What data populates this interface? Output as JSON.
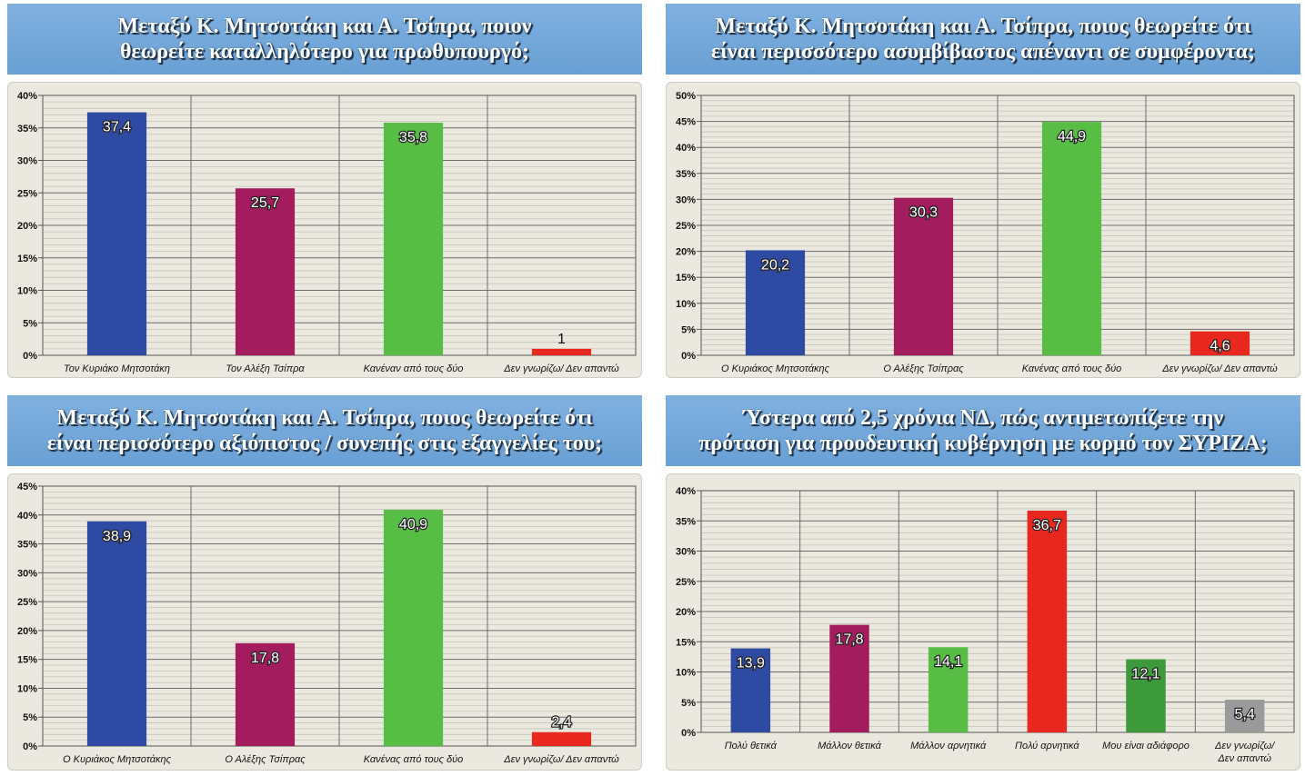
{
  "chart_data": [
    {
      "type": "bar",
      "title_lines": [
        "Μεταξύ Κ. Μητσοτάκη και Α. Τσίπρα, ποιον",
        "θεωρείτε καταλληλότερο για πρωθυπουργό;"
      ],
      "categories": [
        "Τον Κυριάκο Μητσοτάκη",
        "Τον Αλέξη Τσίπρα",
        "Κανέναν από τους δύο",
        "Δεν γνωρίζω/ Δεν απαντώ"
      ],
      "values": [
        37.4,
        25.7,
        35.8,
        1
      ],
      "value_labels": [
        "37,4",
        "25,7",
        "35,8",
        "1"
      ],
      "colors": [
        "#2f4aa3",
        "#a31c5e",
        "#57bd45",
        "#e8281f"
      ],
      "ylim": [
        0,
        40
      ],
      "yticks": [
        0,
        5,
        10,
        15,
        20,
        25,
        30,
        35,
        40
      ],
      "ytick_labels": [
        "0%",
        "5%",
        "10%",
        "15%",
        "20%",
        "25%",
        "30%",
        "35%",
        "40%"
      ],
      "grid": true
    },
    {
      "type": "bar",
      "title_lines": [
        "Μεταξύ Κ. Μητσοτάκη και Α. Τσίπρα, ποιος θεωρείτε ότι",
        "είναι περισσότερο ασυμβίβαστος απέναντι σε συμφέροντα;"
      ],
      "categories": [
        "Ο Κυριάκος Μητσοτάκης",
        "Ο Αλέξης Τσίπρας",
        "Κανένας από τους δύο",
        "Δεν γνωρίζω/ Δεν απαντώ"
      ],
      "values": [
        20.2,
        30.3,
        44.9,
        4.6
      ],
      "value_labels": [
        "20,2",
        "30,3",
        "44,9",
        "4,6"
      ],
      "colors": [
        "#2f4aa3",
        "#a31c5e",
        "#57bd45",
        "#e8281f"
      ],
      "ylim": [
        0,
        50
      ],
      "yticks": [
        0,
        5,
        10,
        15,
        20,
        25,
        30,
        35,
        40,
        45,
        50
      ],
      "ytick_labels": [
        "0%",
        "5%",
        "10%",
        "15%",
        "20%",
        "25%",
        "30%",
        "35%",
        "40%",
        "45%",
        "50%"
      ],
      "grid": true
    },
    {
      "type": "bar",
      "title_lines": [
        "Μεταξύ Κ. Μητσοτάκη και Α. Τσίπρα, ποιος θεωρείτε ότι",
        "είναι περισσότερο αξιόπιστος / συνεπής στις εξαγγελίες του;"
      ],
      "categories": [
        "Ο Κυριάκος Μητσοτάκης",
        "Ο Αλέξης Τσίπρας",
        "Κανένας από τους δύο",
        "Δεν γνωρίζω/ Δεν απαντώ"
      ],
      "values": [
        38.9,
        17.8,
        40.9,
        2.4
      ],
      "value_labels": [
        "38,9",
        "17,8",
        "40,9",
        "2,4"
      ],
      "colors": [
        "#2f4aa3",
        "#a31c5e",
        "#57bd45",
        "#e8281f"
      ],
      "ylim": [
        0,
        45
      ],
      "yticks": [
        0,
        5,
        10,
        15,
        20,
        25,
        30,
        35,
        40,
        45
      ],
      "ytick_labels": [
        "0%",
        "5%",
        "10%",
        "15%",
        "20%",
        "25%",
        "30%",
        "35%",
        "40%",
        "45%"
      ],
      "grid": true
    },
    {
      "type": "bar",
      "title_lines": [
        "Ύστερα από 2,5 χρόνια ΝΔ, πώς αντιμετωπίζετε την",
        "πρόταση για προοδευτική κυβέρνηση με κορμό τον ΣΥΡΙΖΑ;"
      ],
      "categories": [
        "Πολύ θετικά",
        "Μάλλον θετικά",
        "Μάλλον αρνητικά",
        "Πολύ αρνητικά",
        "Μου είναι αδιάφορο",
        "Δεν γνωρίζω/Δεν απαντώ"
      ],
      "values": [
        13.9,
        17.8,
        14.1,
        36.7,
        12.1,
        5.4
      ],
      "value_labels": [
        "13,9",
        "17,8",
        "14,1",
        "36,7",
        "12,1",
        "5,4"
      ],
      "colors": [
        "#2f4aa3",
        "#a31c5e",
        "#57bd45",
        "#e8281f",
        "#3d9a3a",
        "#9a9a9a"
      ],
      "ylim": [
        0,
        40
      ],
      "yticks": [
        0,
        5,
        10,
        15,
        20,
        25,
        30,
        35,
        40
      ],
      "ytick_labels": [
        "0%",
        "5%",
        "10%",
        "15%",
        "20%",
        "25%",
        "30%",
        "35%",
        "40%"
      ],
      "grid": true
    }
  ]
}
